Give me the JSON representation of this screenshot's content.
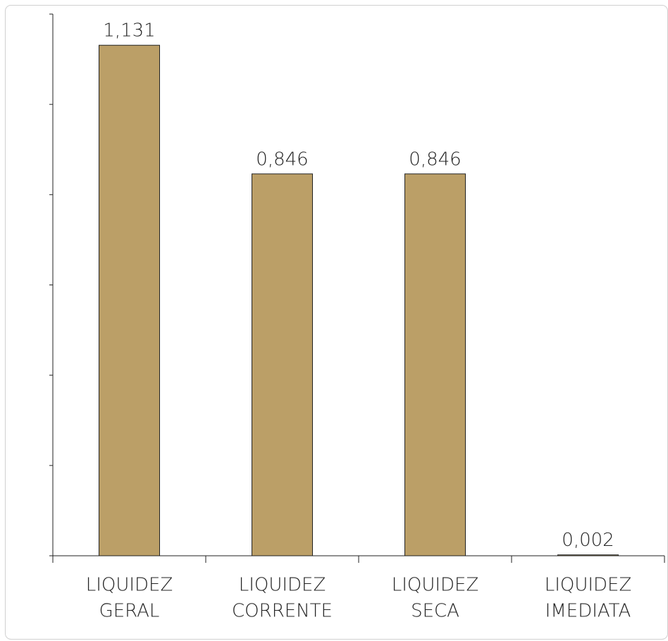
{
  "chart_data": {
    "type": "bar",
    "categories": [
      [
        "LIQUIDEZ",
        "GERAL"
      ],
      [
        "LIQUIDEZ",
        "CORRENTE"
      ],
      [
        "LIQUIDEZ",
        "SECA"
      ],
      [
        "LIQUIDEZ",
        "IMEDIATA"
      ]
    ],
    "values": [
      1.131,
      0.846,
      0.846,
      0.002
    ],
    "value_labels": [
      "1,131",
      "0,846",
      "0,846",
      "0,002"
    ],
    "color": "#bb9f67",
    "ylim": [
      0,
      1.2
    ],
    "yticks": [
      0,
      0.2,
      0.4,
      0.6,
      0.8,
      1,
      1.2
    ]
  }
}
